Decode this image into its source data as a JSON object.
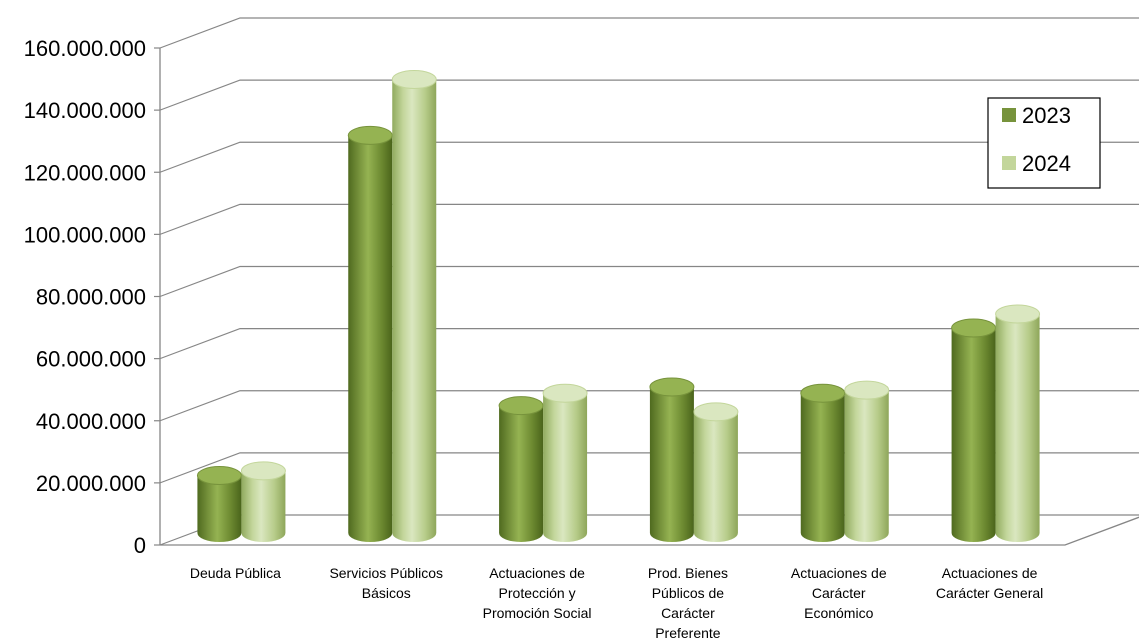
{
  "chart_data": {
    "type": "bar",
    "style": "3d-cylinder",
    "title": "",
    "xlabel": "",
    "ylabel": "",
    "ylim": [
      0,
      160000000
    ],
    "y_ticks": [
      "0",
      "20.000.000",
      "40.000.000",
      "60.000.000",
      "80.000.000",
      "100.000.000",
      "120.000.000",
      "140.000.000",
      "160.000.000"
    ],
    "grid": true,
    "legend_position": "top-right",
    "categories": [
      [
        "Deuda Pública"
      ],
      [
        "Servicios Públicos",
        "Básicos"
      ],
      [
        "Actuaciones de",
        "Protección y",
        "Promoción Social"
      ],
      [
        "Prod. Bienes",
        "Públicos de",
        "Carácter",
        "Preferente"
      ],
      [
        "Actuaciones de",
        "Carácter",
        "Económico"
      ],
      [
        "Actuaciones de",
        "Carácter General"
      ]
    ],
    "series": [
      {
        "name": "2023",
        "color": "#77933c",
        "values": [
          18500000,
          128000000,
          41000000,
          47000000,
          45000000,
          66000000
        ]
      },
      {
        "name": "2024",
        "color": "#c3d69b",
        "values": [
          20000000,
          146000000,
          45000000,
          39000000,
          46000000,
          70500000
        ]
      }
    ]
  }
}
